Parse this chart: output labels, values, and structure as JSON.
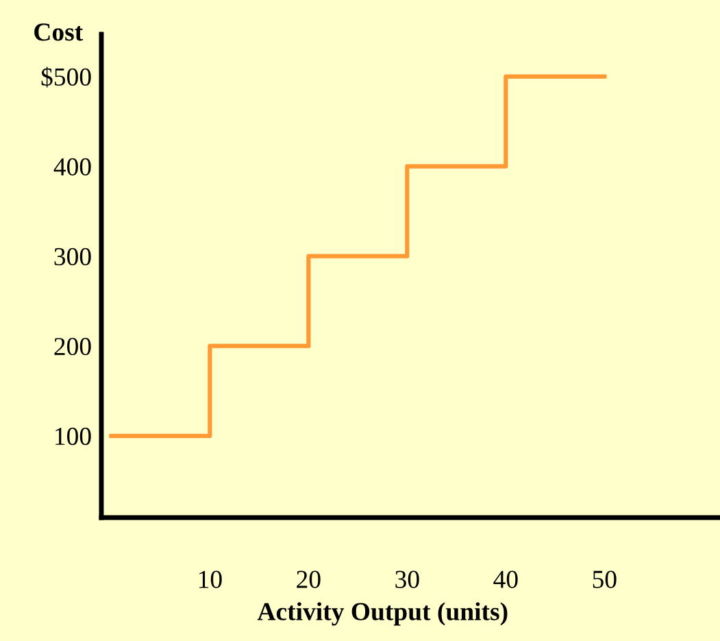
{
  "chart_data": {
    "type": "step",
    "ylabel": "Cost",
    "xlabel": "Activity Output (units)",
    "x": [
      0,
      10,
      20,
      30,
      40,
      50
    ],
    "series": [
      {
        "color": "#ff9933",
        "values": [
          100,
          200,
          300,
          400,
          500,
          500
        ]
      }
    ],
    "xlim": [
      -1,
      61.7
    ],
    "ylim": [
      9,
      547
    ],
    "xticks": [
      10,
      20,
      30,
      40,
      50
    ],
    "yticks": [
      100,
      200,
      300,
      400,
      {
        "value": 500,
        "label": "$500"
      }
    ],
    "grid": false,
    "legend": false,
    "marker": "none",
    "line_style": "solid"
  }
}
